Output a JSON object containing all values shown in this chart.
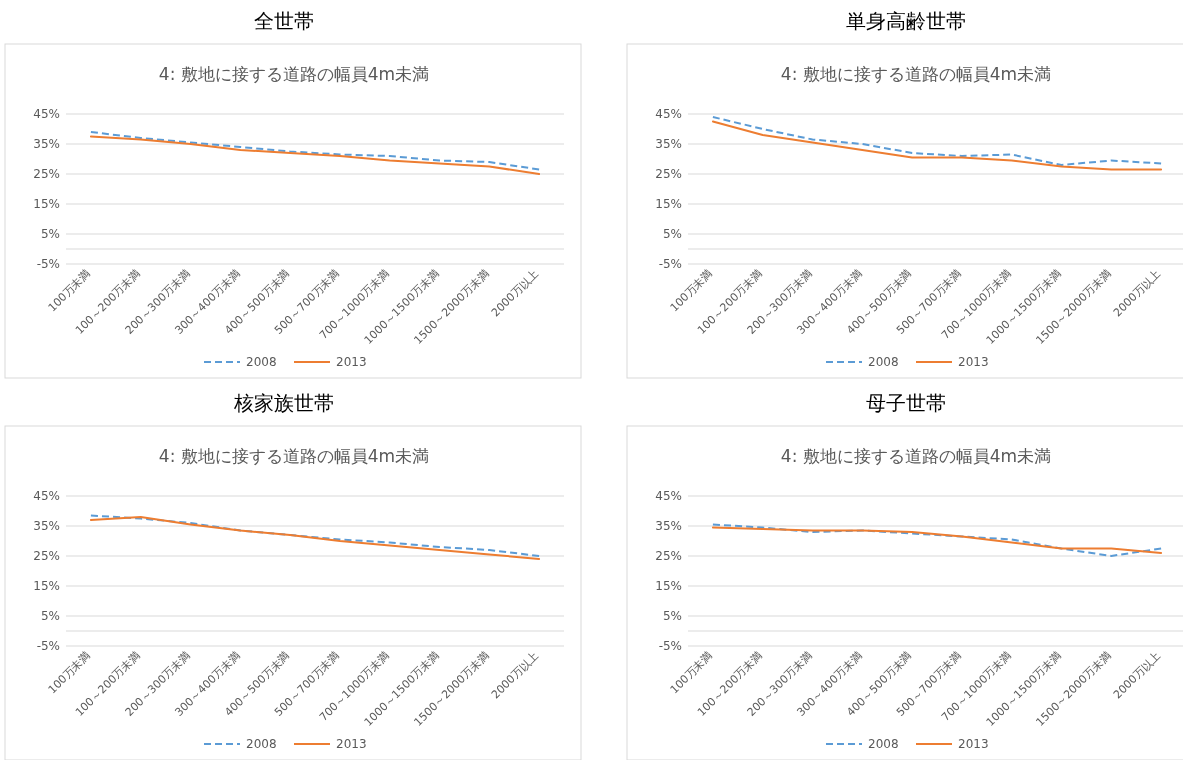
{
  "chart_data": [
    {
      "type": "line",
      "title": "全世帯",
      "subtitle": "4: 敷地に接する道路の幅員4m未満",
      "categories": [
        "100万未満",
        "100～200万未満",
        "200～300万未満",
        "300～400万未満",
        "400～500万未満",
        "500～700万未満",
        "700～1000万未満",
        "1000～1500万未満",
        "1500～2000万未満",
        "2000万以上"
      ],
      "series": [
        {
          "name": "2008",
          "color": "#5b9bd5",
          "line_style": "dashed",
          "values": [
            39,
            37,
            35.5,
            34,
            32.5,
            31.5,
            31,
            29.5,
            29,
            26.5
          ]
        },
        {
          "name": "2013",
          "color": "#ed7d31",
          "line_style": "solid",
          "values": [
            37.5,
            36.5,
            35,
            33,
            32,
            31,
            29.5,
            28.5,
            27.5,
            25
          ]
        }
      ],
      "ylim": [
        -5,
        45
      ],
      "yticks": [
        {
          "value": -5,
          "label": "-5%"
        },
        {
          "value": 5,
          "label": "5%"
        },
        {
          "value": 15,
          "label": "15%"
        },
        {
          "value": 25,
          "label": "25%"
        },
        {
          "value": 35,
          "label": "35%"
        },
        {
          "value": 45,
          "label": "45%"
        }
      ],
      "grid": "y",
      "legend": "bottom"
    },
    {
      "type": "line",
      "title": "単身高齢世帯",
      "subtitle": "4: 敷地に接する道路の幅員4m未満",
      "categories": [
        "100万未満",
        "100～200万未満",
        "200～300万未満",
        "300～400万未満",
        "400～500万未満",
        "500～700万未満",
        "700～1000万未満",
        "1000～1500万未満",
        "1500～2000万未満",
        "2000万以上"
      ],
      "series": [
        {
          "name": "2008",
          "color": "#5b9bd5",
          "line_style": "dashed",
          "values": [
            44,
            40,
            36.5,
            35,
            32,
            31,
            31.5,
            28,
            29.5,
            28.5
          ]
        },
        {
          "name": "2013",
          "color": "#ed7d31",
          "line_style": "solid",
          "values": [
            42.5,
            38,
            35.5,
            33,
            30.5,
            30.5,
            29.5,
            27.5,
            26.5,
            26.5
          ]
        }
      ],
      "ylim": [
        -5,
        45
      ],
      "yticks": [
        {
          "value": -5,
          "label": "-5%"
        },
        {
          "value": 5,
          "label": "5%"
        },
        {
          "value": 15,
          "label": "15%"
        },
        {
          "value": 25,
          "label": "25%"
        },
        {
          "value": 35,
          "label": "35%"
        },
        {
          "value": 45,
          "label": "45%"
        }
      ],
      "grid": "y",
      "legend": "bottom"
    },
    {
      "type": "line",
      "title": "核家族世帯",
      "subtitle": "4: 敷地に接する道路の幅員4m未満",
      "categories": [
        "100万未満",
        "100～200万未満",
        "200～300万未満",
        "300～400万未満",
        "400～500万未満",
        "500～700万未満",
        "700～1000万未満",
        "1000～1500万未満",
        "1500～2000万未満",
        "2000万以上"
      ],
      "series": [
        {
          "name": "2008",
          "color": "#5b9bd5",
          "line_style": "dashed",
          "values": [
            38.5,
            37.5,
            36,
            33.5,
            32,
            30.5,
            29.5,
            28,
            27,
            25
          ]
        },
        {
          "name": "2013",
          "color": "#ed7d31",
          "line_style": "solid",
          "values": [
            37,
            38,
            35.5,
            33.5,
            32,
            30,
            28.5,
            27,
            25.5,
            24
          ]
        }
      ],
      "ylim": [
        -5,
        45
      ],
      "yticks": [
        {
          "value": -5,
          "label": "-5%"
        },
        {
          "value": 5,
          "label": "5%"
        },
        {
          "value": 15,
          "label": "15%"
        },
        {
          "value": 25,
          "label": "25%"
        },
        {
          "value": 35,
          "label": "35%"
        },
        {
          "value": 45,
          "label": "45%"
        }
      ],
      "grid": "y",
      "legend": "bottom"
    },
    {
      "type": "line",
      "title": "母子世帯",
      "subtitle": "4: 敷地に接する道路の幅員4m未満",
      "categories": [
        "100万未満",
        "100～200万未満",
        "200～300万未満",
        "300～400万未満",
        "400～500万未満",
        "500～700万未満",
        "700～1000万未満",
        "1000～1500万未満",
        "1500～2000万未満",
        "2000万以上"
      ],
      "series": [
        {
          "name": "2008",
          "color": "#5b9bd5",
          "line_style": "dashed",
          "values": [
            35.5,
            34.5,
            33,
            33.5,
            32.5,
            31.5,
            30.5,
            27.5,
            25,
            27.5
          ]
        },
        {
          "name": "2013",
          "color": "#ed7d31",
          "line_style": "solid",
          "values": [
            34.5,
            34,
            33.5,
            33.5,
            33,
            31.5,
            29.5,
            27.5,
            27.5,
            26
          ]
        }
      ],
      "ylim": [
        -5,
        45
      ],
      "yticks": [
        {
          "value": -5,
          "label": "-5%"
        },
        {
          "value": 5,
          "label": "5%"
        },
        {
          "value": 15,
          "label": "15%"
        },
        {
          "value": 25,
          "label": "25%"
        },
        {
          "value": 35,
          "label": "35%"
        },
        {
          "value": 45,
          "label": "45%"
        }
      ],
      "grid": "y",
      "legend": "bottom"
    }
  ]
}
